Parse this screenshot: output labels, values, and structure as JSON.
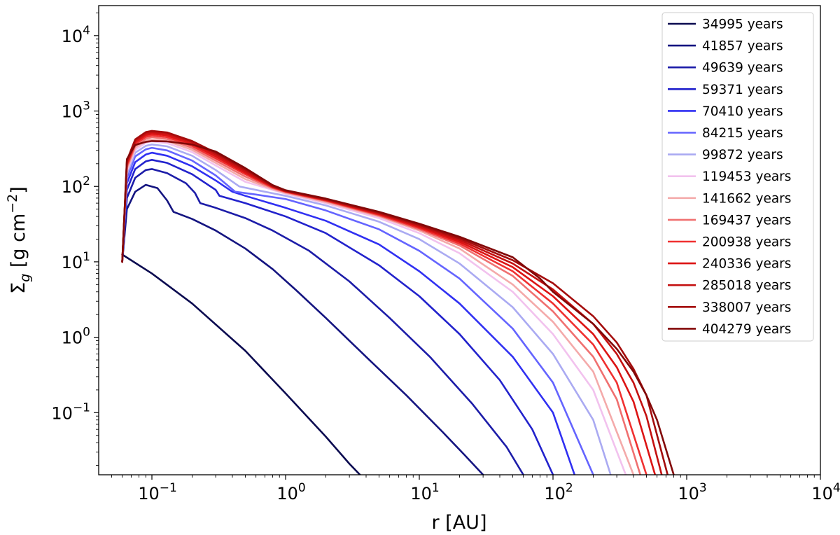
{
  "chart_data": {
    "type": "line",
    "xscale": "log",
    "yscale": "log",
    "xlim": [
      0.04,
      10000
    ],
    "ylim": [
      0.015,
      25000
    ],
    "xlabel": "r [AU]",
    "ylabel": "Σg [g cm−2]",
    "ylabel_parts": {
      "base": "Σ",
      "sub": "g",
      "mid": " [g cm",
      "sup": "−2",
      "end": "]"
    },
    "legend_position": "upper right",
    "grid": false,
    "x_ticks": [
      {
        "value": 0.1,
        "base": "10",
        "exp": "−1"
      },
      {
        "value": 1,
        "base": "10",
        "exp": "0"
      },
      {
        "value": 10,
        "base": "10",
        "exp": "1"
      },
      {
        "value": 100,
        "base": "10",
        "exp": "2"
      },
      {
        "value": 1000,
        "base": "10",
        "exp": "3"
      },
      {
        "value": 10000,
        "base": "10",
        "exp": "4"
      }
    ],
    "y_ticks": [
      {
        "value": 0.1,
        "base": "10",
        "exp": "−1"
      },
      {
        "value": 1,
        "base": "10",
        "exp": "0"
      },
      {
        "value": 10,
        "base": "10",
        "exp": "1"
      },
      {
        "value": 100,
        "base": "10",
        "exp": "2"
      },
      {
        "value": 1000,
        "base": "10",
        "exp": "3"
      },
      {
        "value": 10000,
        "base": "10",
        "exp": "4"
      }
    ],
    "series": [
      {
        "name": "34995 years",
        "color": "#0b0b50",
        "x": [
          0.06,
          0.1,
          0.2,
          0.5,
          1,
          2,
          3,
          3.6
        ],
        "y": [
          12.5,
          7.0,
          2.8,
          0.66,
          0.18,
          0.048,
          0.021,
          0.015
        ]
      },
      {
        "name": "41857 years",
        "color": "#141480",
        "x": [
          0.06,
          0.065,
          0.075,
          0.09,
          0.11,
          0.13,
          0.145,
          0.2,
          0.3,
          0.5,
          0.8,
          1.2,
          2,
          4,
          8,
          15,
          22,
          30
        ],
        "y": [
          10,
          50,
          85,
          105,
          95,
          65,
          46,
          37,
          26,
          15,
          8.0,
          4.2,
          1.8,
          0.55,
          0.17,
          0.055,
          0.027,
          0.015
        ]
      },
      {
        "name": "49639 years",
        "color": "#1c1ca8",
        "x": [
          0.06,
          0.065,
          0.075,
          0.09,
          0.1,
          0.13,
          0.18,
          0.21,
          0.23,
          0.3,
          0.5,
          0.8,
          1.5,
          3,
          6,
          12,
          25,
          45,
          60
        ],
        "y": [
          10,
          70,
          130,
          165,
          170,
          150,
          110,
          82,
          60,
          52,
          38,
          26,
          14,
          5.5,
          1.8,
          0.55,
          0.13,
          0.035,
          0.015
        ]
      },
      {
        "name": "59371 years",
        "color": "#2222cc",
        "x": [
          0.06,
          0.065,
          0.075,
          0.09,
          0.1,
          0.13,
          0.2,
          0.3,
          0.32,
          0.5,
          1,
          2,
          5,
          10,
          20,
          40,
          70,
          100
        ],
        "y": [
          10,
          90,
          170,
          215,
          225,
          205,
          145,
          90,
          75,
          60,
          40,
          24,
          9,
          3.5,
          1.1,
          0.27,
          0.06,
          0.015
        ]
      },
      {
        "name": "70410 years",
        "color": "#3030f2",
        "x": [
          0.06,
          0.065,
          0.075,
          0.09,
          0.1,
          0.13,
          0.2,
          0.3,
          0.4,
          0.5,
          1,
          2,
          5,
          10,
          20,
          50,
          100,
          145
        ],
        "y": [
          10,
          110,
          210,
          265,
          280,
          255,
          185,
          120,
          85,
          75,
          52,
          35,
          17,
          7.5,
          2.8,
          0.55,
          0.1,
          0.015
        ]
      },
      {
        "name": "84215 years",
        "color": "#6464ff",
        "x": [
          0.06,
          0.065,
          0.075,
          0.09,
          0.1,
          0.13,
          0.2,
          0.3,
          0.42,
          0.6,
          1,
          2,
          5,
          10,
          20,
          50,
          100,
          200
        ],
        "y": [
          10,
          130,
          250,
          310,
          325,
          300,
          220,
          140,
          85,
          78,
          68,
          48,
          27,
          14,
          6,
          1.3,
          0.25,
          0.015
        ]
      },
      {
        "name": "99872 years",
        "color": "#aaaaf2",
        "x": [
          0.06,
          0.065,
          0.075,
          0.09,
          0.1,
          0.13,
          0.2,
          0.3,
          0.45,
          0.7,
          1,
          2,
          5,
          10,
          20,
          50,
          100,
          200,
          270
        ],
        "y": [
          10,
          145,
          280,
          345,
          360,
          340,
          255,
          165,
          100,
          85,
          75,
          56,
          34,
          20,
          9.5,
          2.5,
          0.6,
          0.08,
          0.015
        ]
      },
      {
        "name": "119453 years",
        "color": "#f2c2ee",
        "x": [
          0.06,
          0.065,
          0.075,
          0.09,
          0.1,
          0.13,
          0.2,
          0.3,
          0.5,
          0.8,
          1,
          2,
          5,
          10,
          20,
          50,
          100,
          200,
          350
        ],
        "y": [
          10,
          160,
          305,
          380,
          395,
          375,
          285,
          190,
          115,
          90,
          80,
          60,
          38,
          24,
          13,
          4,
          1.1,
          0.2,
          0.015
        ]
      },
      {
        "name": "141662 years",
        "color": "#f4aaaa",
        "x": [
          0.06,
          0.065,
          0.075,
          0.09,
          0.1,
          0.13,
          0.2,
          0.3,
          0.5,
          0.8,
          1,
          2,
          5,
          10,
          20,
          50,
          100,
          200,
          400
        ],
        "y": [
          10,
          170,
          325,
          405,
          420,
          400,
          305,
          205,
          125,
          92,
          82,
          62,
          40,
          26,
          15,
          5,
          1.6,
          0.35,
          0.015
        ]
      },
      {
        "name": "169437 years",
        "color": "#f07070",
        "x": [
          0.06,
          0.065,
          0.075,
          0.09,
          0.1,
          0.13,
          0.2,
          0.3,
          0.5,
          0.8,
          1,
          2,
          5,
          10,
          20,
          50,
          100,
          200,
          300,
          450
        ],
        "y": [
          10,
          180,
          345,
          430,
          450,
          425,
          325,
          220,
          135,
          95,
          84,
          64,
          41,
          27,
          16.5,
          6.5,
          2.2,
          0.55,
          0.15,
          0.015
        ]
      },
      {
        "name": "200938 years",
        "color": "#f03030",
        "x": [
          0.06,
          0.065,
          0.075,
          0.09,
          0.1,
          0.13,
          0.2,
          0.3,
          0.5,
          0.8,
          1,
          2,
          5,
          10,
          20,
          50,
          100,
          200,
          300,
          500
        ],
        "y": [
          10,
          190,
          365,
          455,
          475,
          450,
          345,
          235,
          145,
          97,
          85,
          65,
          42,
          28,
          17.5,
          7.5,
          2.8,
          0.8,
          0.25,
          0.015
        ]
      },
      {
        "name": "240336 years",
        "color": "#dc1414",
        "x": [
          0.06,
          0.065,
          0.075,
          0.09,
          0.1,
          0.13,
          0.2,
          0.3,
          0.5,
          0.8,
          1,
          2,
          5,
          10,
          20,
          50,
          100,
          200,
          300,
          400,
          580
        ],
        "y": [
          10,
          200,
          385,
          480,
          500,
          475,
          365,
          250,
          152,
          99,
          86,
          66,
          43,
          29,
          18.5,
          8.5,
          3.5,
          1.1,
          0.4,
          0.14,
          0.015
        ]
      },
      {
        "name": "285018 years",
        "color": "#c41010",
        "x": [
          0.06,
          0.065,
          0.075,
          0.09,
          0.1,
          0.13,
          0.2,
          0.3,
          0.5,
          0.8,
          1,
          2,
          5,
          10,
          20,
          50,
          100,
          200,
          300,
          400,
          500,
          650
        ],
        "y": [
          10,
          210,
          405,
          505,
          525,
          500,
          385,
          265,
          160,
          100,
          87,
          67,
          44,
          30,
          19.5,
          9.5,
          4.3,
          1.5,
          0.6,
          0.25,
          0.09,
          0.015
        ]
      },
      {
        "name": "338007 years",
        "color": "#a40c0c",
        "x": [
          0.06,
          0.065,
          0.075,
          0.09,
          0.1,
          0.13,
          0.2,
          0.3,
          0.5,
          0.8,
          1,
          2,
          5,
          10,
          20,
          50,
          100,
          200,
          300,
          400,
          500,
          720
        ],
        "y": [
          10,
          220,
          420,
          525,
          545,
          520,
          400,
          280,
          168,
          102,
          88,
          68,
          45,
          31,
          20.5,
          10.5,
          5.2,
          1.9,
          0.85,
          0.38,
          0.17,
          0.015
        ]
      },
      {
        "name": "404279 years",
        "color": "#820808",
        "x": [
          0.06,
          0.065,
          0.075,
          0.09,
          0.1,
          0.13,
          0.2,
          0.3,
          0.5,
          0.8,
          1,
          2,
          5,
          10,
          20,
          50,
          80,
          100,
          200,
          300,
          400,
          500,
          600,
          800
        ],
        "y": [
          10,
          230,
          355,
          390,
          400,
          395,
          360,
          290,
          175,
          104,
          89,
          69,
          46,
          32,
          21.5,
          11.5,
          6,
          4,
          1.5,
          0.7,
          0.35,
          0.17,
          0.08,
          0.015
        ]
      }
    ]
  }
}
